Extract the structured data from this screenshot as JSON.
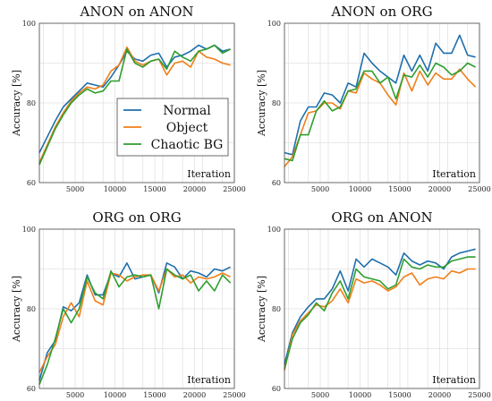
{
  "colors": {
    "Normal": "#1f6fad",
    "Object": "#f07f1a",
    "Chaotic BG": "#2e9e2e"
  },
  "chart_data": [
    {
      "type": "line",
      "title": "ANON on ANON",
      "xlabel": "Iteration",
      "ylabel": "Accuracy [%]",
      "xlim": [
        500,
        25000
      ],
      "ylim": [
        60,
        100
      ],
      "xticks": [
        5000,
        10000,
        15000,
        20000,
        25000
      ],
      "yticks": [
        60,
        80,
        100
      ],
      "grid": true,
      "legend": "center-left",
      "x": [
        500,
        1500,
        2500,
        3500,
        4500,
        5500,
        6500,
        7500,
        8500,
        9500,
        10500,
        11500,
        12500,
        13500,
        14500,
        15500,
        16500,
        17500,
        18500,
        19500,
        20500,
        21500,
        22500,
        23500,
        24500
      ],
      "series": [
        {
          "name": "Normal",
          "values": [
            67.5,
            71.5,
            75.5,
            79,
            81,
            83,
            85,
            84.5,
            84,
            86.5,
            89.5,
            93,
            91,
            90.5,
            92,
            92.5,
            89,
            91.5,
            92,
            93,
            94.5,
            93.5,
            94.5,
            93,
            93.5
          ]
        },
        {
          "name": "Object",
          "values": [
            65,
            69.5,
            74,
            77.5,
            80.5,
            82.5,
            84,
            83.5,
            84.5,
            88,
            89.5,
            94,
            90.5,
            89.5,
            90.5,
            91,
            87,
            90,
            90.5,
            89,
            93,
            91.5,
            91,
            90,
            89.5
          ]
        },
        {
          "name": "Chaotic BG",
          "values": [
            64.5,
            69,
            73.5,
            77,
            80,
            82,
            83.5,
            82.5,
            83,
            85.5,
            85.5,
            93.5,
            90,
            89,
            90.5,
            91,
            88.5,
            93,
            91.5,
            90.5,
            93,
            93.5,
            94.5,
            92.5,
            93.5
          ]
        }
      ]
    },
    {
      "type": "line",
      "title": "ANON on ORG",
      "xlabel": "Iteration",
      "ylabel": "Accuracy [%]",
      "xlim": [
        500,
        25000
      ],
      "ylim": [
        60,
        100
      ],
      "xticks": [
        5000,
        10000,
        15000,
        20000,
        25000
      ],
      "yticks": [
        60,
        80,
        100
      ],
      "grid": true,
      "x": [
        500,
        1500,
        2500,
        3500,
        4500,
        5500,
        6500,
        7500,
        8500,
        9500,
        10500,
        11500,
        12500,
        13500,
        14500,
        15500,
        16500,
        17500,
        18500,
        19500,
        20500,
        21500,
        22500,
        23500,
        24500
      ],
      "series": [
        {
          "name": "Normal",
          "values": [
            67.5,
            67,
            75.5,
            79,
            79,
            82.5,
            82,
            80,
            85,
            84,
            92.5,
            90,
            88,
            86.5,
            85,
            92,
            88,
            92,
            88,
            95,
            92.5,
            92.5,
            97,
            92,
            91.5
          ]
        },
        {
          "name": "Object",
          "values": [
            64,
            66.5,
            72,
            77.5,
            78,
            80,
            80,
            78.5,
            83,
            82.5,
            87.5,
            86,
            85,
            82,
            79.5,
            87.5,
            83,
            88,
            84.5,
            87.5,
            86,
            86,
            88.5,
            86,
            84
          ]
        },
        {
          "name": "Chaotic BG",
          "values": [
            66,
            65.5,
            72,
            72,
            78,
            80.5,
            78,
            79,
            83,
            83.5,
            88,
            88,
            85,
            86.5,
            81,
            87,
            86.5,
            89.5,
            86.5,
            90,
            89,
            87,
            88,
            90,
            89
          ]
        }
      ]
    },
    {
      "type": "line",
      "title": "ORG on ORG",
      "xlabel": "Iteration",
      "ylabel": "Accuracy [%]",
      "xlim": [
        500,
        25000
      ],
      "ylim": [
        60,
        100
      ],
      "xticks": [
        5000,
        10000,
        15000,
        20000,
        25000
      ],
      "yticks": [
        60,
        80,
        100
      ],
      "grid": true,
      "x": [
        500,
        1500,
        2500,
        3500,
        4500,
        5500,
        6500,
        7500,
        8500,
        9500,
        10500,
        11500,
        12500,
        13500,
        14500,
        15500,
        16500,
        17500,
        18500,
        19500,
        20500,
        21500,
        22500,
        23500,
        24500
      ],
      "series": [
        {
          "name": "Normal",
          "values": [
            62,
            69,
            72,
            80.5,
            79.5,
            81.5,
            88.5,
            83.5,
            83.5,
            89,
            88,
            91.5,
            87.5,
            88,
            88.5,
            84,
            91.5,
            90.5,
            87.5,
            89.5,
            89,
            88,
            90,
            89.5,
            90.5
          ]
        },
        {
          "name": "Object",
          "values": [
            64,
            68,
            71,
            78,
            81.5,
            78,
            87,
            82,
            81,
            89,
            88.5,
            87,
            88,
            88.5,
            88.5,
            84.5,
            90,
            88,
            88.5,
            86.5,
            88,
            87.5,
            88,
            89,
            88
          ]
        },
        {
          "name": "Chaotic BG",
          "values": [
            61,
            66,
            72.5,
            80,
            76.5,
            80,
            88,
            84,
            82.5,
            89.5,
            85.5,
            88,
            88.5,
            88,
            88.5,
            80,
            90,
            88.5,
            87.5,
            88.5,
            84.5,
            87,
            84.5,
            88.5,
            86.5
          ]
        }
      ]
    },
    {
      "type": "line",
      "title": "ORG on ANON",
      "xlabel": "Iteration",
      "ylabel": "Accuracy [%]",
      "xlim": [
        500,
        25000
      ],
      "ylim": [
        60,
        100
      ],
      "xticks": [
        5000,
        10000,
        15000,
        20000,
        25000
      ],
      "yticks": [
        60,
        80,
        100
      ],
      "grid": true,
      "x": [
        500,
        1500,
        2500,
        3500,
        4500,
        5500,
        6500,
        7500,
        8500,
        9500,
        10500,
        11500,
        12500,
        13500,
        14500,
        15500,
        16500,
        17500,
        18500,
        19500,
        20500,
        21500,
        22500,
        23500,
        24500
      ],
      "series": [
        {
          "name": "Normal",
          "values": [
            66,
            74,
            78,
            80.5,
            82.5,
            82.5,
            85,
            89.5,
            84.5,
            92.5,
            90.5,
            92.5,
            91.5,
            90.5,
            88.5,
            94,
            92,
            91,
            92,
            91.5,
            90,
            93,
            94,
            94.5,
            95
          ]
        },
        {
          "name": "Object",
          "values": [
            64.5,
            73.5,
            77,
            79,
            81,
            80.5,
            82,
            85,
            81.5,
            87.5,
            86.5,
            87,
            86,
            84.5,
            85.5,
            88,
            89,
            86,
            87.5,
            88,
            87.5,
            89.5,
            89,
            90,
            90
          ]
        },
        {
          "name": "Chaotic BG",
          "values": [
            65,
            72.5,
            76.5,
            78.5,
            81.5,
            79.5,
            84,
            87,
            82.5,
            90,
            88,
            87.5,
            87,
            85,
            86,
            92.5,
            90.5,
            90,
            91,
            90.5,
            90.5,
            92,
            92.5,
            93,
            93
          ]
        }
      ]
    }
  ]
}
